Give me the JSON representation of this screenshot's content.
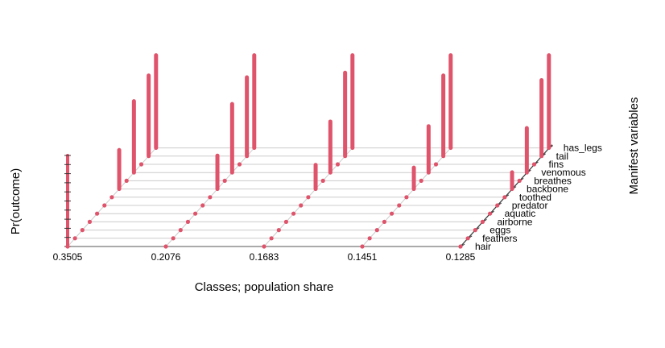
{
  "chart_data": {
    "type": "3d-spike",
    "title": "",
    "xlabel": "Classes; population share",
    "ylabel": "Pr(outcome)",
    "zlabel": "Manifest variables",
    "bar_color": "#df536b",
    "grid": true,
    "ylim": [
      0,
      1
    ],
    "classes": [
      "0.3505",
      "0.2076",
      "0.1683",
      "0.1451",
      "0.1285"
    ],
    "variables": [
      "hair",
      "feathers",
      "eggs",
      "airborne",
      "aquatic",
      "predator",
      "toothed",
      "backbone",
      "breathes",
      "venomous",
      "fins",
      "tail",
      "has_legs"
    ],
    "series": [
      {
        "class": "0.3505",
        "values": [
          0.0,
          0.0,
          0.0,
          0.0,
          0.0,
          0.0,
          0.0,
          0.42,
          0.0,
          0.77,
          0.0,
          0.87,
          1.0
        ]
      },
      {
        "class": "0.2076",
        "values": [
          0.0,
          0.0,
          0.0,
          0.0,
          0.0,
          0.0,
          0.0,
          0.36,
          0.0,
          0.74,
          0.0,
          0.85,
          1.0
        ]
      },
      {
        "class": "0.1683",
        "values": [
          0.0,
          0.0,
          0.0,
          0.0,
          0.0,
          0.0,
          0.0,
          0.26,
          0.0,
          0.55,
          0.0,
          0.9,
          1.0
        ]
      },
      {
        "class": "0.1451",
        "values": [
          0.0,
          0.0,
          0.0,
          0.0,
          0.0,
          0.0,
          0.0,
          0.23,
          0.0,
          0.5,
          0.0,
          0.87,
          1.0
        ]
      },
      {
        "class": "0.1285",
        "values": [
          0.0,
          0.0,
          0.0,
          0.0,
          0.0,
          0.0,
          0.0,
          0.18,
          0.0,
          0.48,
          0.0,
          0.82,
          1.0
        ]
      }
    ]
  }
}
